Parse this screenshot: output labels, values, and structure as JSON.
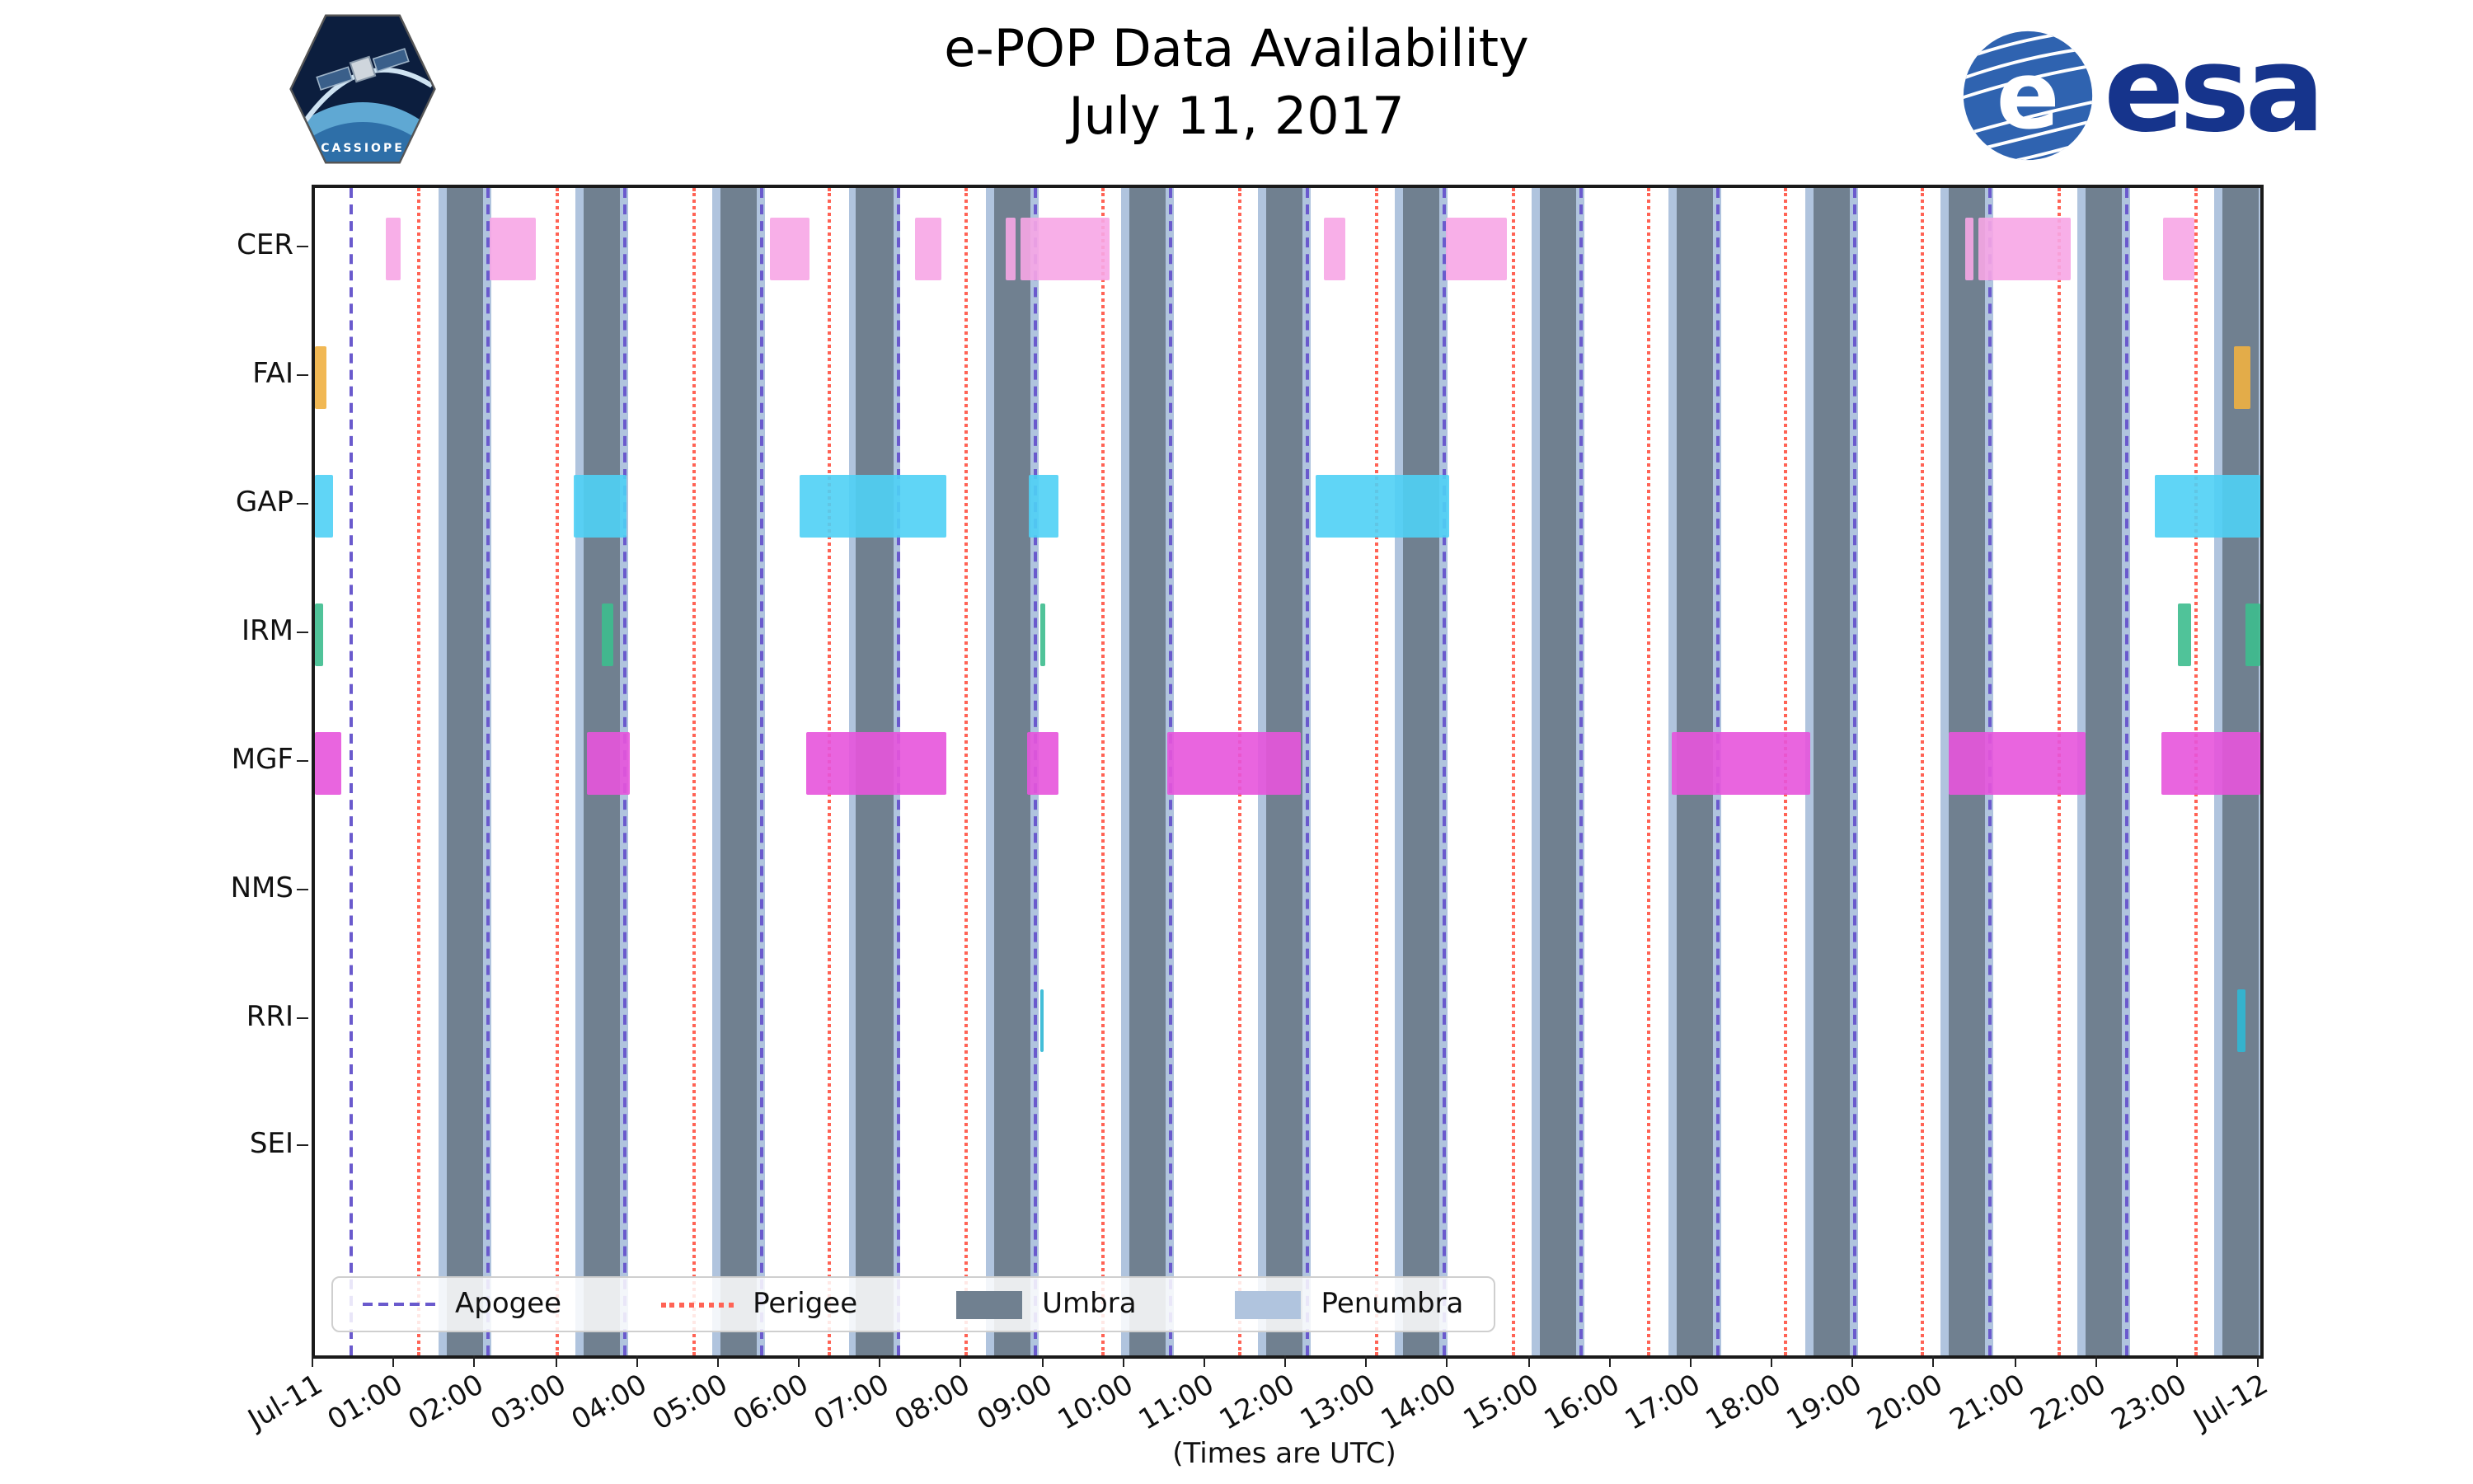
{
  "header": {
    "title": "e-POP Data Availability",
    "subtitle": "July 11, 2017",
    "cassiope_label": "CASSIOPE",
    "esa_label": "esa"
  },
  "chart_data": {
    "type": "availability-timeline",
    "title": "e-POP Data Availability",
    "subtitle": "July 11, 2017",
    "xlabel": "(Times are UTC)",
    "x_range_hours": [
      0,
      24
    ],
    "x_ticks": [
      "Jul-11",
      "01:00",
      "02:00",
      "03:00",
      "04:00",
      "05:00",
      "06:00",
      "07:00",
      "08:00",
      "09:00",
      "10:00",
      "11:00",
      "12:00",
      "13:00",
      "14:00",
      "15:00",
      "16:00",
      "17:00",
      "18:00",
      "19:00",
      "20:00",
      "21:00",
      "22:00",
      "23:00",
      "Jul-12"
    ],
    "instruments": [
      "CER",
      "FAI",
      "GAP",
      "IRM",
      "MGF",
      "NMS",
      "RRI",
      "SEI"
    ],
    "colors": {
      "apogee": "#6A5ACD",
      "perigee": "#FF6355",
      "umbra": "#708090",
      "penumbra": "#B0C4DE"
    },
    "umbra_bands": [
      [
        1.62,
        2.07
      ],
      [
        3.31,
        3.76
      ],
      [
        5.0,
        5.45
      ],
      [
        6.68,
        7.13
      ],
      [
        8.37,
        8.82
      ],
      [
        10.05,
        10.5
      ],
      [
        11.74,
        12.19
      ],
      [
        13.42,
        13.87
      ],
      [
        15.11,
        15.56
      ],
      [
        16.79,
        17.24
      ],
      [
        18.48,
        18.93
      ],
      [
        20.16,
        20.61
      ],
      [
        21.85,
        22.3
      ],
      [
        23.53,
        23.98
      ]
    ],
    "apogee_times": [
      0.45,
      2.14,
      3.82,
      5.51,
      7.19,
      8.88,
      10.56,
      12.25,
      13.93,
      15.62,
      17.3,
      18.99,
      20.67,
      22.36
    ],
    "perigee_times": [
      1.29,
      2.98,
      4.67,
      6.35,
      8.04,
      9.72,
      11.41,
      13.09,
      14.78,
      16.46,
      18.15,
      19.83,
      21.52,
      23.2
    ],
    "series": [
      {
        "instrument": "CER",
        "color": "#F7A6E6",
        "bars": [
          [
            0.88,
            1.06
          ],
          [
            2.16,
            2.72
          ],
          [
            5.62,
            6.1
          ],
          [
            7.4,
            7.72
          ],
          [
            8.52,
            8.64
          ],
          [
            8.7,
            9.8
          ],
          [
            12.45,
            12.72
          ],
          [
            13.95,
            14.7
          ],
          [
            20.36,
            20.46
          ],
          [
            20.52,
            21.66
          ],
          [
            22.8,
            23.18
          ]
        ]
      },
      {
        "instrument": "FAI",
        "color": "#EFB041",
        "bars": [
          [
            0.0,
            0.14
          ],
          [
            23.68,
            23.88
          ]
        ]
      },
      {
        "instrument": "GAP",
        "color": "#4FD0F5",
        "bars": [
          [
            0.0,
            0.22
          ],
          [
            3.2,
            3.85
          ],
          [
            5.97,
            7.78
          ],
          [
            8.8,
            9.18
          ],
          [
            12.35,
            14.0
          ],
          [
            22.7,
            24.0
          ]
        ]
      },
      {
        "instrument": "IRM",
        "color": "#3DBD8E",
        "bars": [
          [
            0.0,
            0.1
          ],
          [
            3.53,
            3.68
          ],
          [
            8.94,
            9.02
          ],
          [
            22.98,
            23.15
          ],
          [
            23.82,
            24.0
          ]
        ]
      },
      {
        "instrument": "MGF",
        "color": "#E754DC",
        "bars": [
          [
            0.0,
            0.33
          ],
          [
            3.36,
            3.89
          ],
          [
            6.06,
            7.8
          ],
          [
            8.78,
            9.18
          ],
          [
            10.52,
            12.16
          ],
          [
            16.73,
            18.44
          ],
          [
            20.15,
            21.84
          ],
          [
            22.78,
            24.0
          ]
        ]
      },
      {
        "instrument": "NMS",
        "color": null,
        "bars": []
      },
      {
        "instrument": "RRI",
        "color": "#2FB7D4",
        "bars": [
          [
            8.94,
            9.0
          ],
          [
            23.72,
            23.82
          ]
        ]
      },
      {
        "instrument": "SEI",
        "color": null,
        "bars": []
      }
    ],
    "legend": [
      {
        "label": "Apogee",
        "style": "dashed",
        "color": "#6A5ACD"
      },
      {
        "label": "Perigee",
        "style": "dotted",
        "color": "#FF6355"
      },
      {
        "label": "Umbra",
        "style": "patch",
        "color": "#708090"
      },
      {
        "label": "Penumbra",
        "style": "patch",
        "color": "#B0C4DE"
      }
    ]
  }
}
